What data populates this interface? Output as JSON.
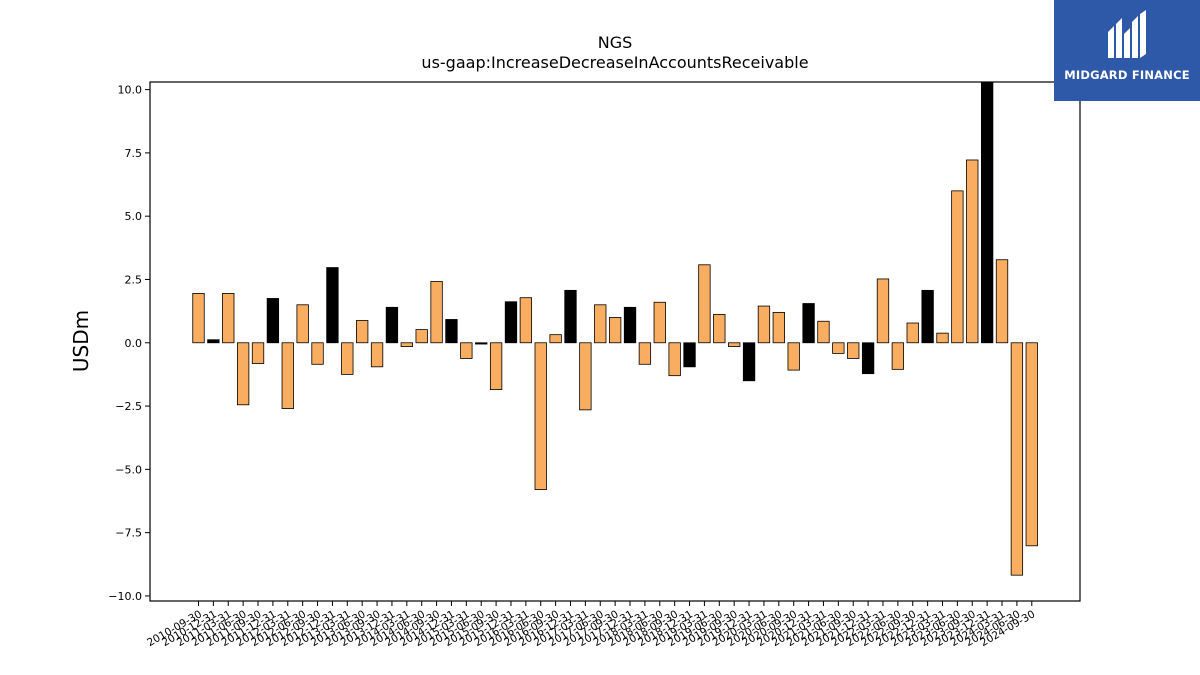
{
  "brand": {
    "name": "MIDGARD FINANCE",
    "background": "#2e58a8"
  },
  "chart_data": {
    "type": "bar",
    "title": "NGS",
    "subtitle": "us-gaap:IncreaseDecreaseInAccountsReceivable",
    "xlabel": "",
    "ylabel": "USDm",
    "ylim": [
      -10.2,
      10.3
    ],
    "yticks": [
      10.0,
      7.5,
      5.0,
      2.5,
      0.0,
      -2.5,
      -5.0,
      -7.5,
      -10.0
    ],
    "ytick_labels": [
      "10.0",
      "7.5",
      "5.0",
      "2.5",
      "0.0",
      "−2.5",
      "−5.0",
      "−7.5",
      "−10.0"
    ],
    "grid": false,
    "colors": {
      "quarterly": "#f8ad60",
      "annual": "#000000"
    },
    "categories": [
      "2010-09-30",
      "2010-12-31",
      "2011-03-31",
      "2011-06-30",
      "2011-09-30",
      "2011-12-31",
      "2012-03-31",
      "2012-06-30",
      "2012-09-30",
      "2012-12-31",
      "2013-03-31",
      "2013-06-30",
      "2013-09-30",
      "2013-12-31",
      "2014-03-31",
      "2014-06-30",
      "2014-09-30",
      "2014-12-31",
      "2015-03-31",
      "2015-06-30",
      "2015-09-30",
      "2015-12-31",
      "2016-03-31",
      "2016-06-30",
      "2016-09-30",
      "2016-12-31",
      "2017-03-31",
      "2017-06-30",
      "2017-09-30",
      "2017-12-31",
      "2018-03-31",
      "2018-06-30",
      "2018-09-30",
      "2018-12-31",
      "2019-03-31",
      "2019-06-30",
      "2019-09-30",
      "2019-12-31",
      "2020-03-31",
      "2020-06-30",
      "2020-09-30",
      "2020-12-31",
      "2021-03-31",
      "2021-06-30",
      "2021-09-30",
      "2021-12-31",
      "2022-03-31",
      "2022-06-30",
      "2022-09-30",
      "2022-12-31",
      "2023-03-31",
      "2023-06-30",
      "2023-09-30",
      "2023-12-31",
      "2024-03-31",
      "2024-06-30",
      "2024-09-30"
    ],
    "values": [
      1.95,
      0.12,
      1.95,
      -2.45,
      -0.82,
      1.75,
      -2.6,
      1.5,
      -0.85,
      2.97,
      -1.25,
      0.88,
      -0.95,
      1.4,
      -0.15,
      0.52,
      2.42,
      0.92,
      -0.62,
      -0.05,
      -1.85,
      1.62,
      1.78,
      -5.8,
      0.32,
      2.07,
      -2.65,
      1.5,
      1.0,
      1.4,
      -0.85,
      1.6,
      -1.3,
      -0.95,
      3.08,
      1.12,
      -0.15,
      -1.5,
      1.45,
      1.2,
      -1.08,
      1.55,
      0.85,
      -0.42,
      -0.62,
      -1.22,
      2.52,
      -1.05,
      0.78,
      2.07,
      0.38,
      6.0,
      7.22,
      10.3,
      3.28,
      -9.18,
      -8.02
    ],
    "bar_type": [
      "q",
      "a",
      "q",
      "q",
      "q",
      "a",
      "q",
      "q",
      "q",
      "a",
      "q",
      "q",
      "q",
      "a",
      "q",
      "q",
      "q",
      "a",
      "q",
      "a",
      "q",
      "a",
      "q",
      "q",
      "q",
      "a",
      "q",
      "q",
      "q",
      "a",
      "q",
      "q",
      "q",
      "a",
      "q",
      "q",
      "q",
      "a",
      "q",
      "q",
      "q",
      "a",
      "q",
      "q",
      "q",
      "a",
      "q",
      "q",
      "q",
      "a",
      "q",
      "q",
      "q",
      "a",
      "q",
      "q",
      "q"
    ]
  }
}
